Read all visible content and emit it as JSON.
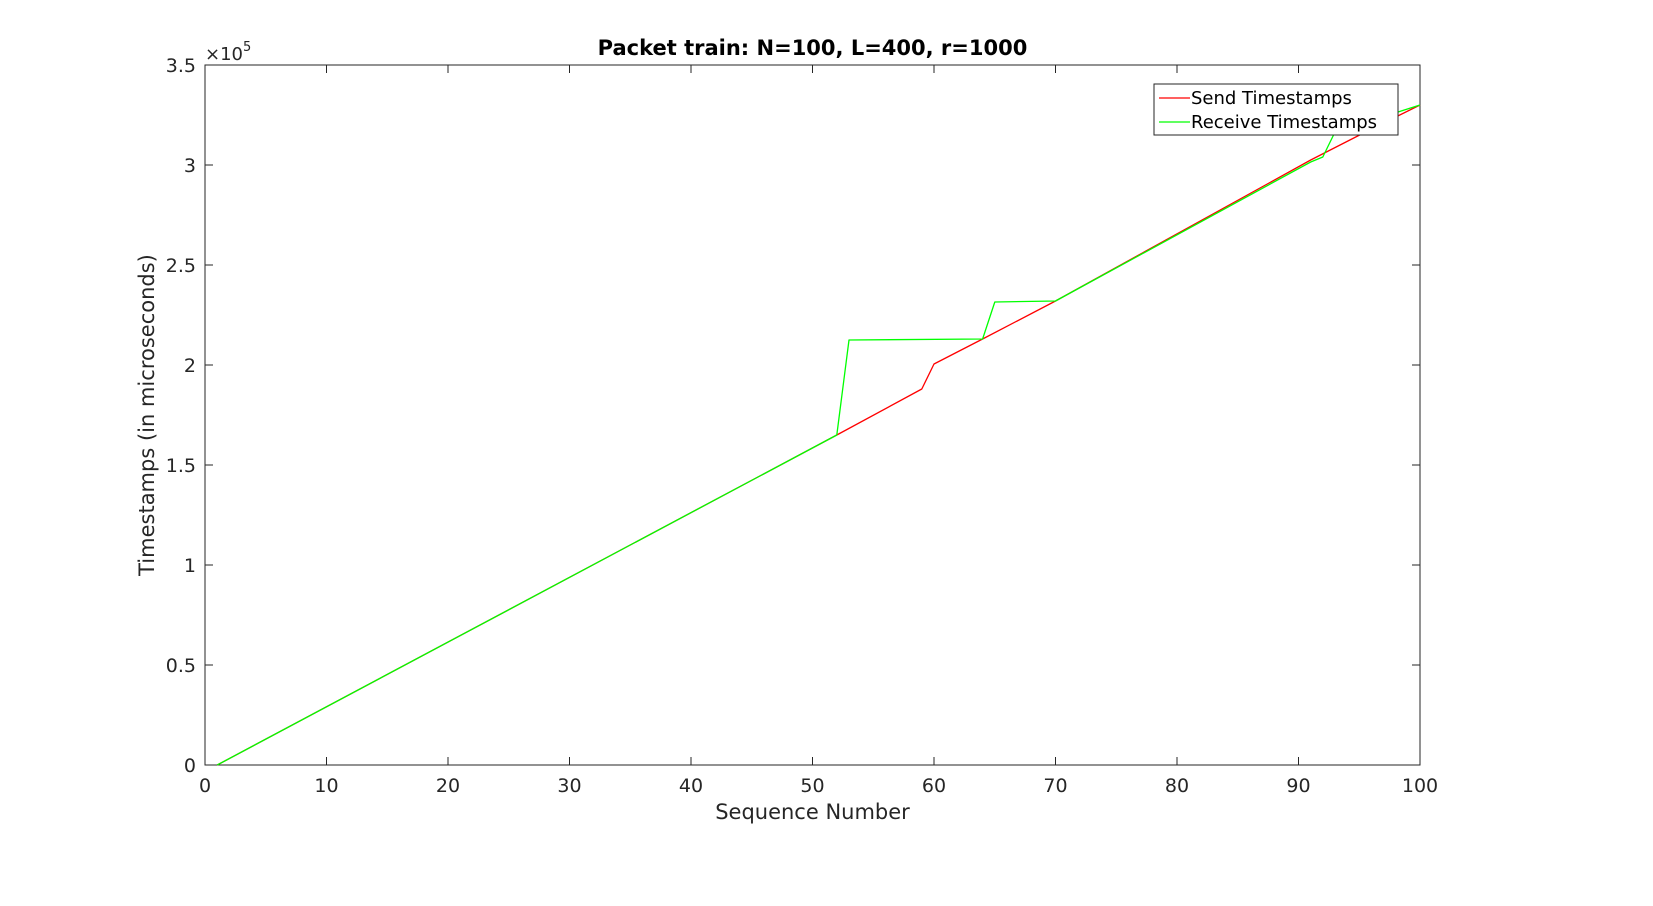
{
  "chart_data": {
    "type": "line",
    "title": "Packet train: N=100, L=400, r=1000",
    "xlabel": "Sequence Number",
    "ylabel": "Timestamps (in microseconds)",
    "xlim": [
      0,
      100
    ],
    "ylim": [
      0,
      350000
    ],
    "x_ticks": [
      0,
      10,
      20,
      30,
      40,
      50,
      60,
      70,
      80,
      90,
      100
    ],
    "y_ticks": [
      0,
      50000,
      100000,
      150000,
      200000,
      250000,
      300000,
      350000
    ],
    "y_tick_labels": [
      "0",
      "0.5",
      "1",
      "1.5",
      "2",
      "2.5",
      "3",
      "3.5"
    ],
    "y_exponent_prefix": "×10",
    "y_exponent_power": "5",
    "grid": false,
    "legend_position": "top-right",
    "series": [
      {
        "name": "Send Timestamps",
        "color": "#ff0000",
        "points": [
          [
            1,
            0
          ],
          [
            52,
            165000
          ],
          [
            59,
            188000
          ],
          [
            60,
            200500
          ],
          [
            64,
            213000
          ],
          [
            70,
            232000
          ],
          [
            91,
            302500
          ],
          [
            96,
            318000
          ],
          [
            100,
            330000
          ]
        ]
      },
      {
        "name": "Receive Timestamps",
        "color": "#00ff00",
        "points": [
          [
            1,
            0
          ],
          [
            52,
            165000
          ],
          [
            53,
            212500
          ],
          [
            64,
            213000
          ],
          [
            65,
            231500
          ],
          [
            70,
            232000
          ],
          [
            91,
            301500
          ],
          [
            92,
            304000
          ],
          [
            93,
            316500
          ],
          [
            100,
            330000
          ]
        ]
      }
    ]
  }
}
